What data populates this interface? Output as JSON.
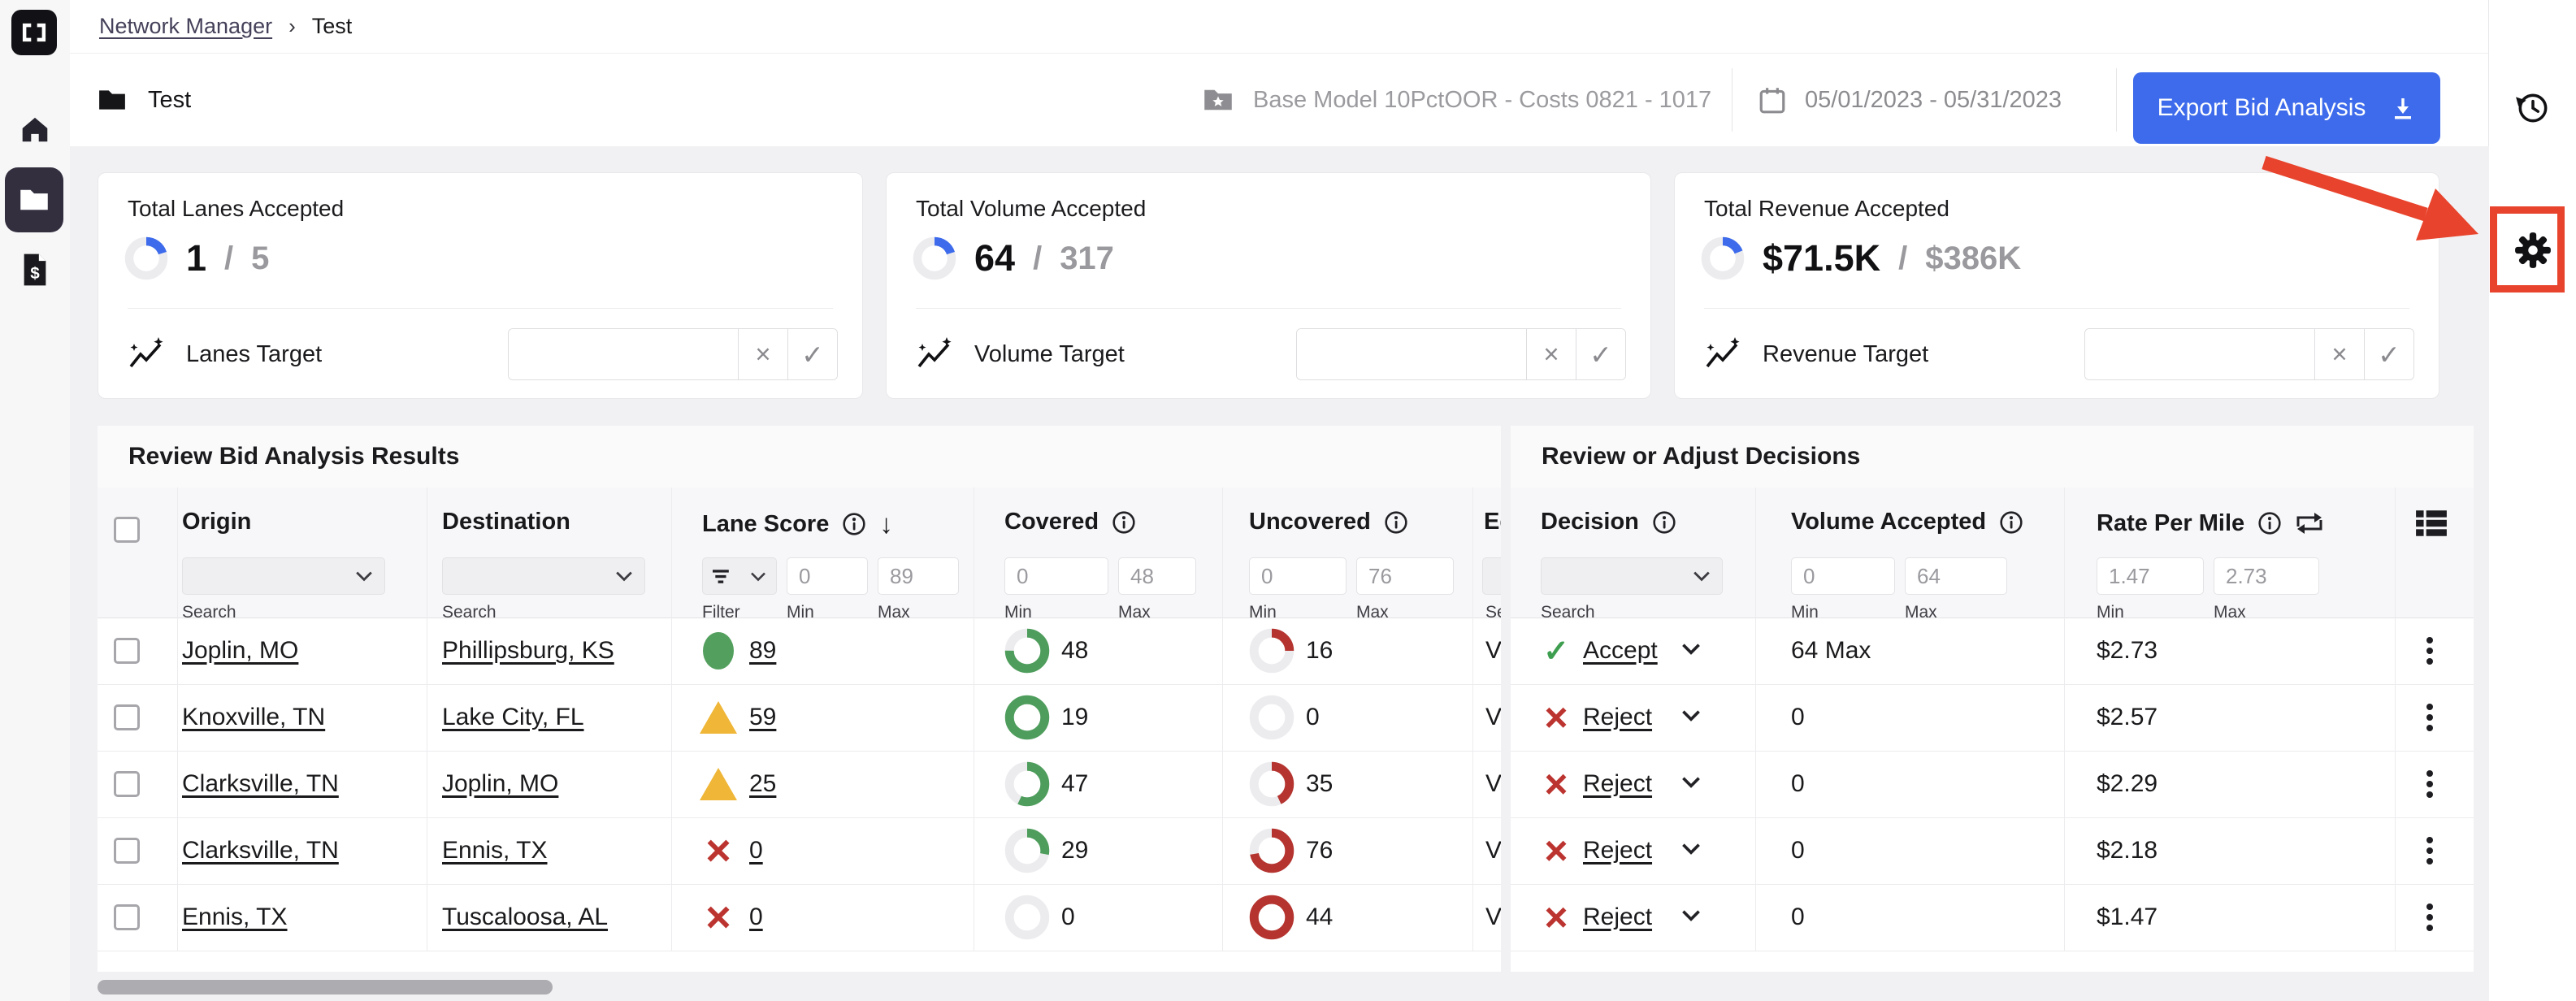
{
  "colors": {
    "accent_blue": "#3D6BEB",
    "green": "#4E9D5C",
    "check_green": "#3E9E50",
    "warn_yellow": "#EFB637",
    "red": "#BC3430",
    "annotation_red": "#E8432C",
    "track_gray": "#ECECEF"
  },
  "ui": {
    "slash": "/",
    "clear_glyph": "×",
    "confirm_glyph": "✓",
    "sort_glyph": "↓",
    "collapse_glyph": "›"
  },
  "breadcrumb": {
    "link": "Network Manager",
    "separator": "›",
    "current": "Test"
  },
  "toolbar": {
    "title": "Test",
    "model": "Base Model 10PctOOR - Costs 0821 - 1017",
    "date_range": "05/01/2023 - 05/31/2023",
    "export_label": "Export Bid Analysis"
  },
  "right_rail": {
    "icons": [
      "history-icon",
      "gear-icon"
    ],
    "highlighted": "gear-icon"
  },
  "cards": [
    {
      "title": "Total Lanes Accepted",
      "value": "1",
      "total": "5",
      "pct": 20,
      "target_label": "Lanes Target"
    },
    {
      "title": "Total Volume Accepted",
      "value": "64",
      "total": "317",
      "pct": 20,
      "target_label": "Volume Target"
    },
    {
      "title": "Total Revenue Accepted",
      "value": "$71.5K",
      "total": "$386K",
      "pct": 19,
      "target_label": "Revenue Target"
    }
  ],
  "table": {
    "left_title": "Review Bid Analysis Results",
    "right_title": "Review or Adjust Decisions",
    "headers": {
      "origin": "Origin",
      "destination": "Destination",
      "lane_score": "Lane Score",
      "covered": "Covered",
      "uncovered": "Uncovered",
      "equipment_clipped": "Eq",
      "decision": "Decision",
      "volume": "Volume Accepted",
      "rate": "Rate Per Mile"
    },
    "filters": {
      "search_label": "Search",
      "filter_label": "Filter",
      "min_label": "Min",
      "max_label": "Max",
      "equipment_label_clipped": "Sea",
      "lane_min": "0",
      "lane_max": "89",
      "covered_min": "0",
      "covered_max": "48",
      "uncovered_min": "0",
      "uncovered_max": "76",
      "volume_min": "0",
      "volume_max": "64",
      "rate_min": "1.47",
      "rate_max": "2.73"
    },
    "rows": [
      {
        "origin": "Joplin, MO",
        "destination": "Phillipsburg, KS",
        "score": "89",
        "score_level": "good",
        "covered": "48",
        "covered_pct": 75,
        "uncovered": "16",
        "uncovered_pct": 25,
        "equipment_clipped": "Va",
        "decision": "Accept",
        "decision_level": "accept",
        "volume": "64 Max",
        "rate": "$2.73"
      },
      {
        "origin": "Knoxville, TN",
        "destination": "Lake City, FL",
        "score": "59",
        "score_level": "warn",
        "covered": "19",
        "covered_pct": 100,
        "uncovered": "0",
        "uncovered_pct": 0,
        "equipment_clipped": "Va",
        "decision": "Reject",
        "decision_level": "reject",
        "volume": "0",
        "rate": "$2.57"
      },
      {
        "origin": "Clarksville, TN",
        "destination": "Joplin, MO",
        "score": "25",
        "score_level": "warn",
        "covered": "47",
        "covered_pct": 57,
        "uncovered": "35",
        "uncovered_pct": 43,
        "equipment_clipped": "Va",
        "decision": "Reject",
        "decision_level": "reject",
        "volume": "0",
        "rate": "$2.29"
      },
      {
        "origin": "Clarksville, TN",
        "destination": "Ennis, TX",
        "score": "0",
        "score_level": "bad",
        "covered": "29",
        "covered_pct": 28,
        "uncovered": "76",
        "uncovered_pct": 72,
        "equipment_clipped": "Va",
        "decision": "Reject",
        "decision_level": "reject",
        "volume": "0",
        "rate": "$2.18"
      },
      {
        "origin": "Ennis, TX",
        "destination": "Tuscaloosa, AL",
        "score": "0",
        "score_level": "bad",
        "covered": "0",
        "covered_pct": 0,
        "uncovered": "44",
        "uncovered_pct": 100,
        "equipment_clipped": "Va",
        "decision": "Reject",
        "decision_level": "reject",
        "volume": "0",
        "rate": "$1.47"
      }
    ]
  }
}
